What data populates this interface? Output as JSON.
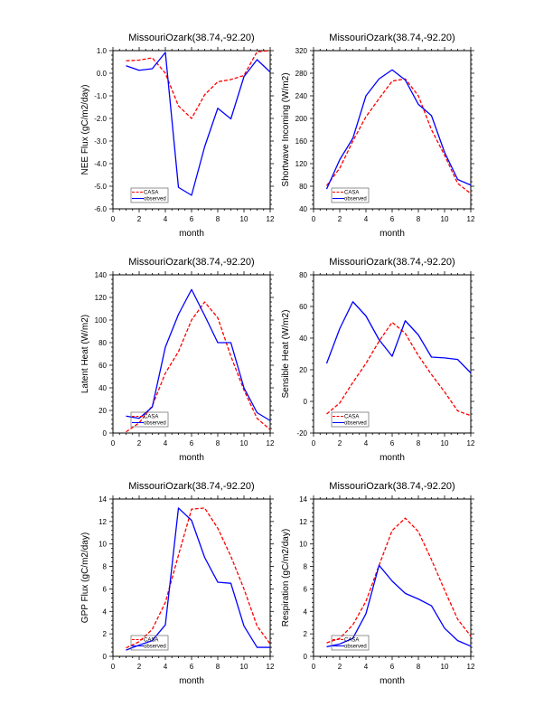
{
  "chart_data": [
    {
      "type": "line",
      "title": "MissouriOzark(38.74,-92.20)",
      "xlabel": "month",
      "ylabel": "NEE Flux (gC/m2/day)",
      "xlim": [
        0,
        12
      ],
      "ylim": [
        -6.0,
        1.0
      ],
      "xticks": [
        "0",
        "2",
        "4",
        "6",
        "8",
        "10",
        "12"
      ],
      "yticks": [
        "-6.0",
        "-5.0",
        "-4.0",
        "-3.0",
        "-2.0",
        "-1.0",
        "0.0",
        "1.0"
      ],
      "x": [
        1,
        2,
        3,
        4,
        5,
        6,
        7,
        8,
        9,
        10,
        11,
        12
      ],
      "legend": "bottom-left",
      "grid": false,
      "series": [
        {
          "name": "CASA",
          "color": "#ff0000",
          "style": "dashed",
          "values": [
            0.55,
            0.58,
            0.68,
            0.0,
            -1.45,
            -2.0,
            -0.95,
            -0.38,
            -0.28,
            -0.1,
            0.95,
            1.0
          ]
        },
        {
          "name": "observed",
          "color": "#0000ff",
          "style": "solid",
          "values": [
            0.33,
            0.13,
            0.2,
            0.92,
            -5.05,
            -5.4,
            -3.25,
            -1.55,
            -2.02,
            -0.15,
            0.6,
            0.05
          ]
        }
      ]
    },
    {
      "type": "line",
      "title": "MissouriOzark(38.74,-92.20)",
      "xlabel": "month",
      "ylabel": "Shortwave Incoming (W/m2)",
      "xlim": [
        0,
        12
      ],
      "ylim": [
        40,
        320
      ],
      "xticks": [
        "0",
        "2",
        "4",
        "6",
        "8",
        "10",
        "12"
      ],
      "yticks": [
        "40",
        "80",
        "120",
        "160",
        "200",
        "240",
        "280",
        "320"
      ],
      "x": [
        1,
        2,
        3,
        4,
        5,
        6,
        7,
        8,
        9,
        10,
        11,
        12
      ],
      "legend": "bottom-left",
      "grid": false,
      "series": [
        {
          "name": "CASA",
          "color": "#ff0000",
          "style": "dashed",
          "values": [
            81,
            112,
            160,
            203,
            235,
            266,
            270,
            240,
            180,
            135,
            85,
            67
          ]
        },
        {
          "name": "observed",
          "color": "#0000ff",
          "style": "solid",
          "values": [
            75,
            127,
            165,
            240,
            270,
            286,
            268,
            225,
            205,
            140,
            92,
            82
          ]
        }
      ]
    },
    {
      "type": "line",
      "title": "MissouriOzark(38.74,-92.20)",
      "xlabel": "month",
      "ylabel": "Latent Heat (W/m2)",
      "xlim": [
        0,
        12
      ],
      "ylim": [
        0,
        140
      ],
      "xticks": [
        "0",
        "2",
        "4",
        "6",
        "8",
        "10",
        "12"
      ],
      "yticks": [
        "0",
        "20",
        "40",
        "60",
        "80",
        "100",
        "120",
        "140"
      ],
      "x": [
        1,
        2,
        3,
        4,
        5,
        6,
        7,
        8,
        9,
        10,
        11,
        12
      ],
      "legend": "bottom-left",
      "grid": false,
      "series": [
        {
          "name": "CASA",
          "color": "#ff0000",
          "style": "dashed",
          "values": [
            1,
            9,
            24,
            53,
            72,
            100,
            116,
            102,
            68,
            38,
            13,
            3
          ]
        },
        {
          "name": "observed",
          "color": "#0000ff",
          "style": "solid",
          "values": [
            15,
            13,
            23,
            76,
            105,
            127,
            104,
            80,
            80,
            40,
            18,
            11
          ]
        }
      ]
    },
    {
      "type": "line",
      "title": "MissouriOzark(38.74,-92.20)",
      "xlabel": "month",
      "ylabel": "Sensible Heat (W/m2)",
      "xlim": [
        0,
        12
      ],
      "ylim": [
        -20,
        80
      ],
      "xticks": [
        "0",
        "2",
        "4",
        "6",
        "8",
        "10",
        "12"
      ],
      "yticks": [
        "-20",
        "0",
        "20",
        "40",
        "60",
        "80"
      ],
      "x": [
        1,
        2,
        3,
        4,
        5,
        6,
        7,
        8,
        9,
        10,
        11,
        12
      ],
      "legend": "bottom-left",
      "grid": false,
      "series": [
        {
          "name": "CASA",
          "color": "#ff0000",
          "style": "dashed",
          "values": [
            -8,
            -1,
            12,
            24,
            38,
            50,
            43,
            29,
            17,
            6,
            -6,
            -9
          ]
        },
        {
          "name": "observed",
          "color": "#0000ff",
          "style": "solid",
          "values": [
            24,
            46,
            63,
            54,
            39,
            28.5,
            51,
            42,
            28,
            27.5,
            26.5,
            18
          ]
        }
      ]
    },
    {
      "type": "line",
      "title": "MissouriOzark(38.74,-92.20)",
      "xlabel": "month",
      "ylabel": "GPP Flux (gC/m2/day)",
      "xlim": [
        0,
        12
      ],
      "ylim": [
        0,
        14
      ],
      "xticks": [
        "0",
        "2",
        "4",
        "6",
        "8",
        "10",
        "12"
      ],
      "yticks": [
        "0",
        "2",
        "4",
        "6",
        "8",
        "10",
        "12",
        "14"
      ],
      "x": [
        1,
        2,
        3,
        4,
        5,
        6,
        7,
        8,
        9,
        10,
        11,
        12
      ],
      "legend": "bottom-left",
      "grid": false,
      "series": [
        {
          "name": "CASA",
          "color": "#ff0000",
          "style": "dashed",
          "values": [
            0.75,
            1.3,
            2.4,
            4.8,
            9.0,
            13.1,
            13.2,
            11.4,
            8.9,
            6.0,
            2.7,
            1.1
          ]
        },
        {
          "name": "observed",
          "color": "#0000ff",
          "style": "solid",
          "values": [
            0.55,
            1.0,
            1.4,
            2.8,
            13.2,
            12.1,
            8.8,
            6.6,
            6.5,
            2.7,
            0.8,
            0.8
          ]
        }
      ]
    },
    {
      "type": "line",
      "title": "MissouriOzark(38.74,-92.20)",
      "xlabel": "month",
      "ylabel": "Respiration (gC/m2/day)",
      "xlim": [
        0,
        12
      ],
      "ylim": [
        0,
        14
      ],
      "xticks": [
        "0",
        "2",
        "4",
        "6",
        "8",
        "10",
        "12"
      ],
      "yticks": [
        "0",
        "2",
        "4",
        "6",
        "8",
        "10",
        "12",
        "14"
      ],
      "x": [
        1,
        2,
        3,
        4,
        5,
        6,
        7,
        8,
        9,
        10,
        11,
        12
      ],
      "legend": "bottom-left",
      "grid": false,
      "series": [
        {
          "name": "CASA",
          "color": "#ff0000",
          "style": "dashed",
          "values": [
            1.2,
            1.6,
            2.8,
            4.9,
            8.1,
            11.2,
            12.3,
            11.1,
            8.6,
            5.9,
            3.3,
            1.8
          ]
        },
        {
          "name": "observed",
          "color": "#0000ff",
          "style": "solid",
          "values": [
            0.85,
            1.1,
            1.6,
            3.8,
            8.1,
            6.7,
            5.6,
            5.1,
            4.5,
            2.5,
            1.4,
            0.9
          ]
        }
      ]
    }
  ]
}
